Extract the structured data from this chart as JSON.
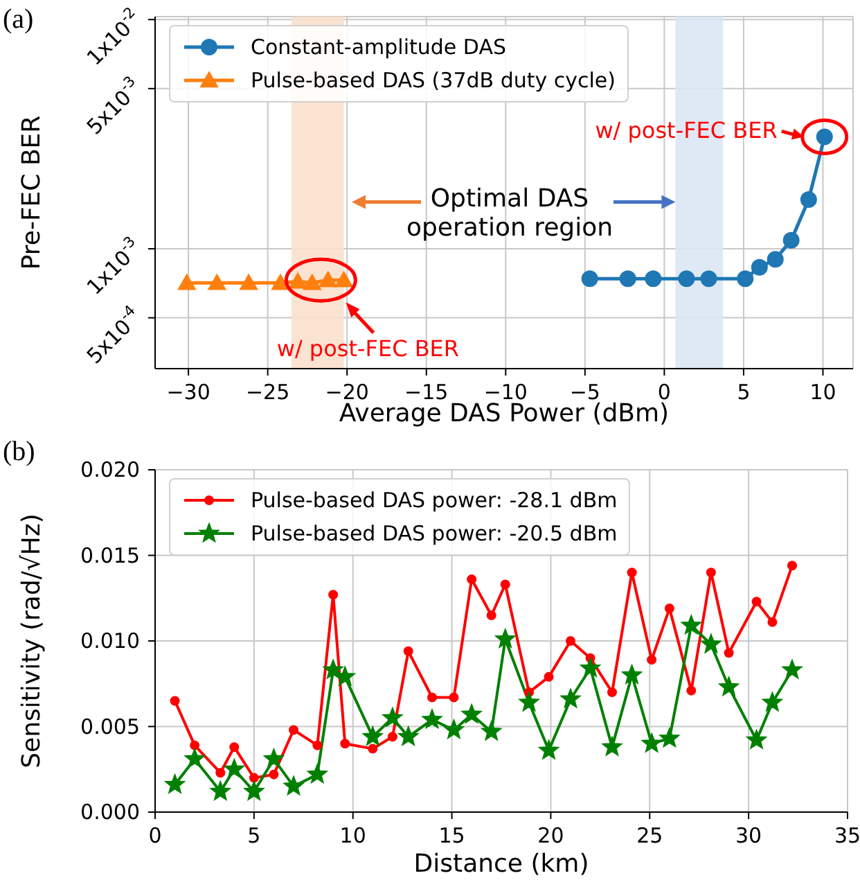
{
  "chart_data": [
    {
      "type": "line",
      "xlabel": "Average DAS Power (dBm)",
      "ylabel": "Pre-FEC BER",
      "log": "y",
      "grid": true,
      "legend": "top left",
      "line_style": "solid",
      "xlim": [
        -32.1,
        11.9
      ],
      "xticks": [
        {
          "value": -30,
          "label": "−30"
        },
        {
          "value": -25,
          "label": "−25"
        },
        {
          "value": -20,
          "label": "−20"
        },
        {
          "value": -15,
          "label": "−15"
        },
        {
          "value": -10,
          "label": "−10"
        },
        {
          "value": -5,
          "label": "−5"
        },
        0,
        5,
        10
      ],
      "ylim": [
        0.0003,
        0.0103
      ],
      "yticks": [
        {
          "value": 0.0005,
          "label": "5x10$^{-4}$"
        },
        {
          "value": 0.001,
          "label": "1x10$^{-3}$"
        },
        {
          "value": 0.005,
          "label": "5x10$^{-3}$"
        },
        {
          "value": 0.01,
          "label": "1x10$^{-2}$"
        }
      ],
      "bands": [
        {
          "axis": "x",
          "from": -23.5,
          "to": -20.2,
          "color": "#fae0cc"
        },
        {
          "axis": "x",
          "from": 0.7,
          "to": 3.7,
          "color": "#dbe7f4"
        }
      ],
      "annotations": [
        "(a)",
        {
          "text": "Optimal DAS\noperation region",
          "x": 0.7,
          "y": 0.0016
        },
        "w/ post-FEC BER",
        "w/ post-FEC BER"
      ],
      "series": [
        {
          "name": "Constant-amplitude DAS",
          "color": "#1f77b4",
          "marker": "circle",
          "x": [
            -4.7,
            -2.3,
            -0.7,
            1.4,
            2.8,
            5.1,
            6.0,
            7.0,
            8.0,
            9.1,
            10.1
          ],
          "values": [
            0.00074,
            0.00074,
            0.00074,
            0.00074,
            0.00074,
            0.00074,
            0.00083,
            0.0009,
            0.00109,
            0.00164,
            0.00308
          ]
        },
        {
          "name": "Pulse-based DAS (37dB duty cycle)",
          "color": "#ff7f0e",
          "marker": "triangle",
          "x": [
            -30.1,
            -28.2,
            -26.2,
            -24.2,
            -23.1,
            -22.2,
            -21.2,
            -20.2
          ],
          "values": [
            0.00071,
            0.00071,
            0.00071,
            0.00071,
            0.00072,
            0.00071,
            0.00073,
            0.00073
          ]
        }
      ]
    },
    {
      "type": "line",
      "xlabel": "Distance (km)",
      "ylabel": "Sensitivity (rad/√Hz)",
      "grid": true,
      "legend": "top left",
      "line_style": "solid",
      "xlim": [
        0,
        35
      ],
      "xticks": [
        0,
        5,
        10,
        15,
        20,
        25,
        30,
        35
      ],
      "ylim": [
        0,
        0.02
      ],
      "yticks": [
        {
          "value": 0,
          "label": "0.000"
        },
        {
          "value": 0.005,
          "label": "0.005"
        },
        {
          "value": 0.01,
          "label": "0.010"
        },
        {
          "value": 0.015,
          "label": "0.015"
        },
        {
          "value": 0.02,
          "label": "0.020"
        }
      ],
      "annotations": [
        "(b)"
      ],
      "series": [
        {
          "name": "Pulse-based DAS power: -28.1 dBm",
          "color": "#ff0000",
          "marker": "circle",
          "x": [
            1,
            2,
            3.3,
            4,
            5,
            6,
            7,
            8.2,
            9,
            9.6,
            11,
            12,
            12.8,
            14,
            15.1,
            16,
            17,
            17.7,
            18.9,
            19.9,
            21,
            22,
            23.1,
            24.1,
            25.1,
            26,
            27.1,
            28.1,
            29,
            30.4,
            31.2,
            32.2
          ],
          "values": [
            0.0065,
            0.0039,
            0.0023,
            0.0038,
            0.002,
            0.0022,
            0.0048,
            0.0039,
            0.0127,
            0.004,
            0.0037,
            0.0044,
            0.0094,
            0.0067,
            0.0067,
            0.0136,
            0.0115,
            0.0133,
            0.007,
            0.0079,
            0.01,
            0.009,
            0.007,
            0.014,
            0.0089,
            0.0119,
            0.0071,
            0.014,
            0.0093,
            0.0123,
            0.0111,
            0.0144
          ]
        },
        {
          "name": "Pulse-based DAS power: -20.5 dBm",
          "color": "#008000",
          "marker": "star",
          "x": [
            1,
            2,
            3.3,
            4,
            5,
            6,
            7,
            8.2,
            9,
            9.6,
            11,
            12,
            12.8,
            14,
            15.1,
            16,
            17,
            17.7,
            18.9,
            19.9,
            21,
            22,
            23.1,
            24.1,
            25.1,
            26,
            27.1,
            28.1,
            29,
            30.4,
            31.2,
            32.2
          ],
          "values": [
            0.0016,
            0.0031,
            0.0012,
            0.0025,
            0.0012,
            0.0031,
            0.0015,
            0.0022,
            0.0083,
            0.0079,
            0.0044,
            0.0055,
            0.0044,
            0.0054,
            0.0048,
            0.0057,
            0.0047,
            0.0101,
            0.0064,
            0.0036,
            0.0066,
            0.0084,
            0.0038,
            0.008,
            0.004,
            0.0043,
            0.0109,
            0.0098,
            0.0073,
            0.0042,
            0.0064,
            0.0083
          ]
        }
      ]
    }
  ]
}
